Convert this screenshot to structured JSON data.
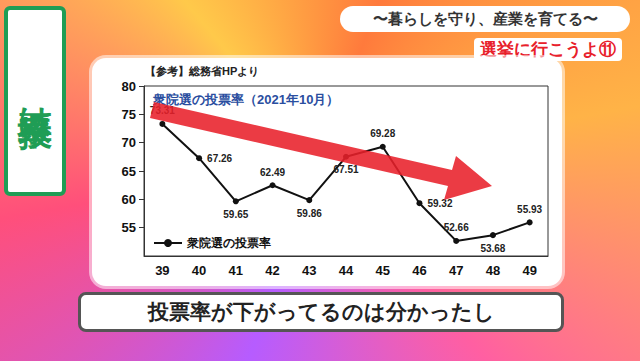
{
  "page": {
    "side_title": "投票率は・・・",
    "banner": "〜暮らしを守り、産業を育てる〜",
    "episode": "選挙に行こうよ⑪",
    "caption": "投票率が下がってるのは分かったし"
  },
  "chart_data": {
    "type": "line",
    "source": "【参考】総務省HPより",
    "title": "衆院選の投票率（2021年10月）",
    "categories": [
      "39",
      "40",
      "41",
      "42",
      "43",
      "44",
      "45",
      "46",
      "47",
      "48",
      "49"
    ],
    "series": [
      {
        "name": "衆院選の投票率",
        "color": "#111111",
        "marker": "circle",
        "values": [
          73.31,
          67.26,
          59.65,
          62.49,
          59.86,
          67.51,
          69.28,
          59.32,
          52.66,
          53.68,
          55.93
        ]
      }
    ],
    "ylim": [
      50,
      80
    ],
    "yticks": [
      55,
      60,
      65,
      70,
      75,
      80
    ],
    "grid": false,
    "legend": "lower left",
    "data_labels": true
  }
}
